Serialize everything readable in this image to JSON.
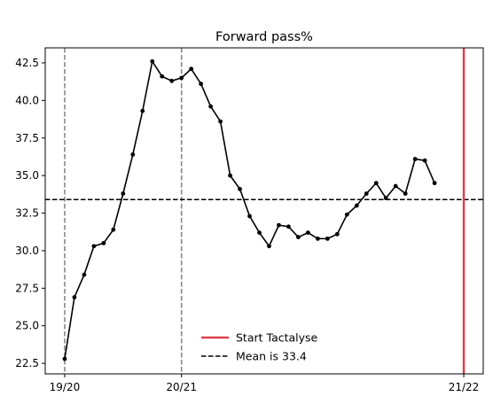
{
  "chart_data": {
    "type": "line",
    "title": "Forward pass%",
    "xlabel": "",
    "ylabel": "",
    "ylim": [
      21.8,
      43.5
    ],
    "yticks": [
      22.5,
      25.0,
      27.5,
      30.0,
      32.5,
      35.0,
      37.5,
      40.0,
      42.5
    ],
    "ytick_labels": [
      "22.5",
      "25.0",
      "27.5",
      "30.0",
      "32.5",
      "35.0",
      "37.5",
      "40.0",
      "42.5"
    ],
    "xlim": [
      -2,
      43
    ],
    "xticks": [
      {
        "x": 0,
        "label": "19/20"
      },
      {
        "x": 12,
        "label": "20/21"
      },
      {
        "x": 41,
        "label": "21/22"
      }
    ],
    "grid": false,
    "legend_position": "lower-center",
    "series": [
      {
        "name": "",
        "color": "#000000",
        "marker": "circle",
        "values": [
          22.8,
          26.9,
          28.4,
          30.3,
          30.5,
          31.4,
          33.8,
          36.4,
          39.3,
          42.6,
          41.6,
          41.3,
          41.5,
          42.1,
          41.1,
          39.6,
          38.6,
          35.0,
          34.1,
          32.3,
          31.2,
          30.3,
          31.7,
          31.6,
          30.9,
          31.2,
          30.8,
          30.8,
          31.1,
          32.4,
          33.0,
          33.8,
          34.5,
          33.5,
          34.3,
          33.8,
          36.1,
          36.0,
          34.5
        ]
      }
    ],
    "season_lines": {
      "x": [
        0,
        12
      ],
      "color": "#808080",
      "style": "dashed"
    },
    "start_line": {
      "x": 41,
      "name": "Start Tactalyse",
      "color": "#d9414b"
    },
    "mean_line": {
      "y": 33.4,
      "name": "Mean is 33.4",
      "color": "#000000",
      "style": "dashed"
    }
  }
}
